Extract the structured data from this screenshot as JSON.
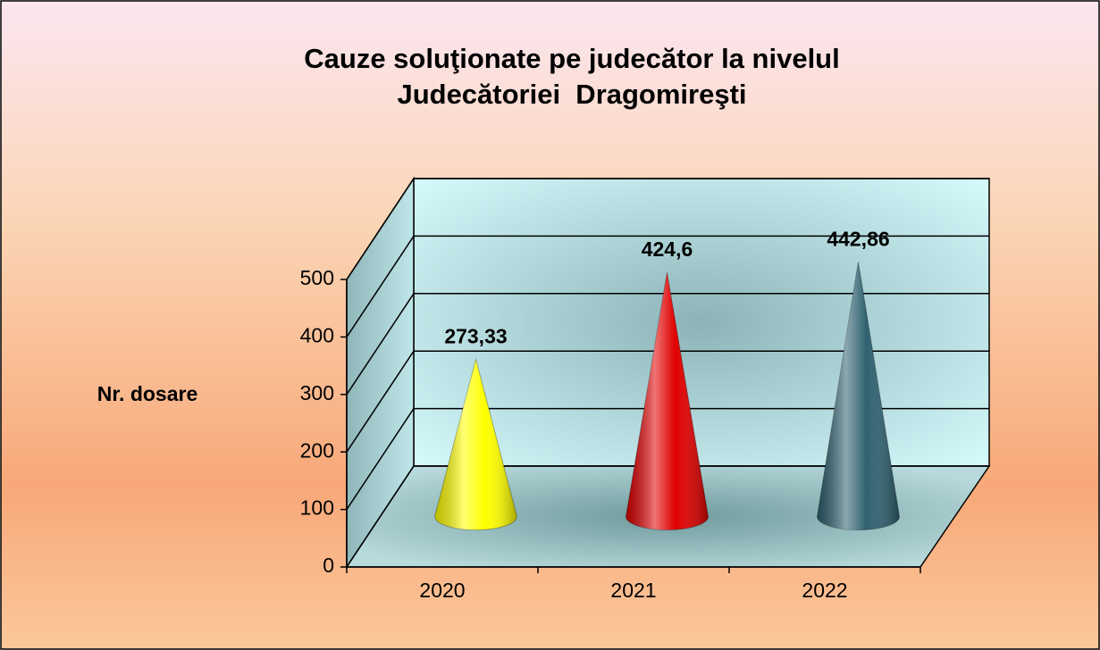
{
  "chart_data": {
    "type": "cone",
    "title": [
      "Cauze soluţionate pe judecător la nivelul",
      "Judecătoriei  Dragomireşti"
    ],
    "y_axis_label": "Nr. dosare",
    "categories": [
      "2020",
      "2021",
      "2022"
    ],
    "values": [
      273.33,
      424.6,
      442.86
    ],
    "value_labels": [
      "273,33",
      "424,6",
      "442,86"
    ],
    "colors": [
      "#ffff00",
      "#e00000",
      "#2f6170"
    ],
    "ylim": [
      0,
      500
    ],
    "yticks": [
      0,
      100,
      200,
      300,
      400,
      500
    ],
    "grid": true
  }
}
